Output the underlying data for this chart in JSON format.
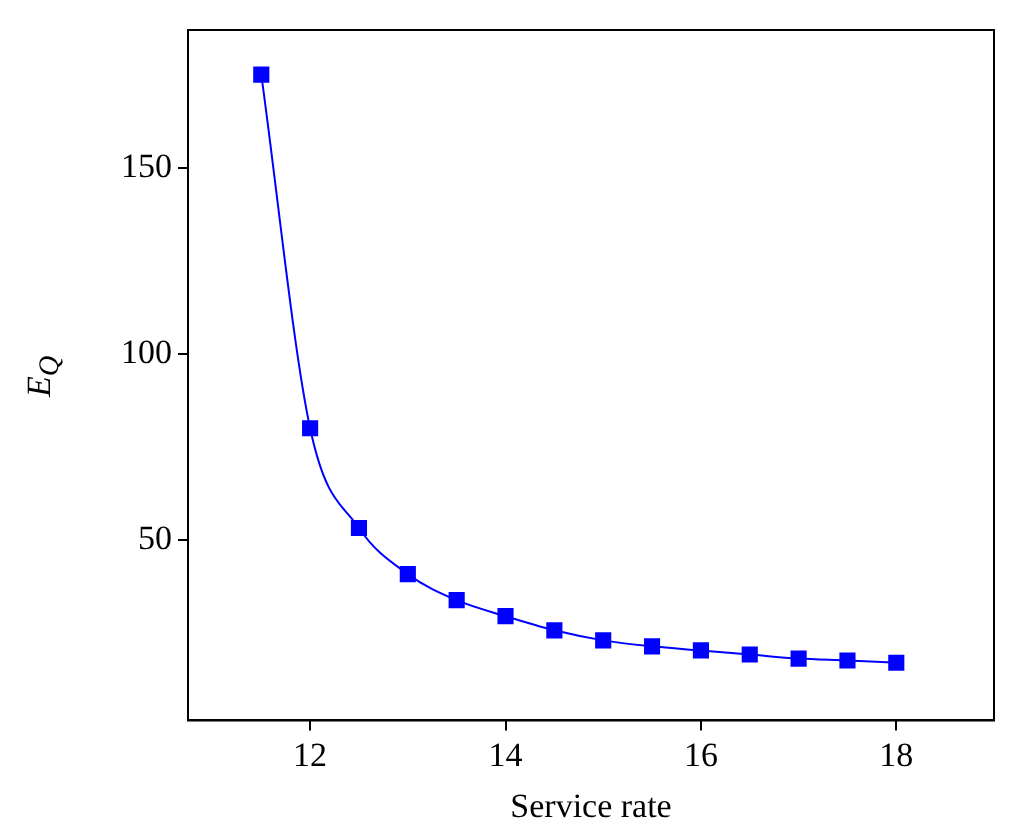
{
  "chart_data": {
    "type": "line",
    "xlabel": "Service rate",
    "ylabel": "E$_{Q}$",
    "x": [
      11.5,
      12,
      12.5,
      13,
      13.5,
      14,
      14.5,
      15,
      15.5,
      16,
      16.5,
      17,
      17.5,
      18
    ],
    "series": [
      {
        "color": "#0000ff",
        "values": [
          175,
          80,
          53.2,
          40.8,
          33.8,
          29.5,
          25.7,
          23,
          21.4,
          20.3,
          19.2,
          18.1,
          17.6,
          17
        ]
      }
    ],
    "xlim": [
      10.75,
      19
    ],
    "xticks": [
      12,
      14,
      16,
      18
    ],
    "ylim": [
      1.5,
      187
    ],
    "yticks": [
      50,
      100,
      150
    ],
    "grid": false,
    "legend": false,
    "marker": "square",
    "line_style": "solid"
  }
}
